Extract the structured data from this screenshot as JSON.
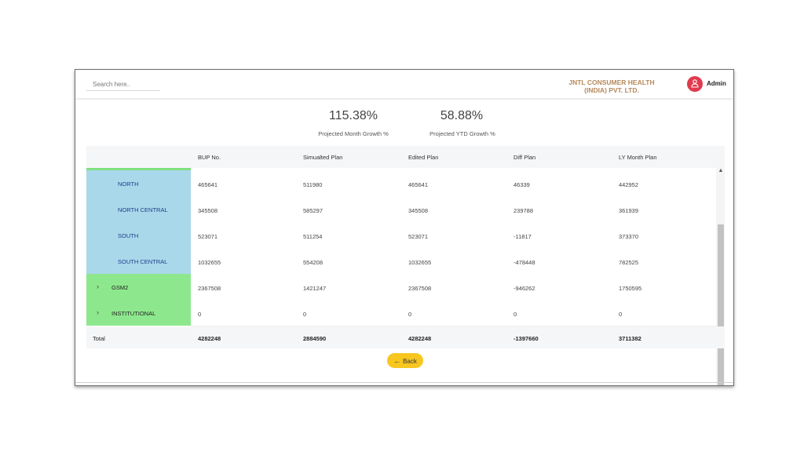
{
  "header": {
    "search_placeholder": "Search here..",
    "company_line1": "JNTL CONSUMER HEALTH",
    "company_line2": "(INDIA) PVT. LTD.",
    "user": "Admin",
    "avatar_icon": "user-icon",
    "avatar_color": "#e03a4f",
    "company_color": "#b5895a"
  },
  "kpis": [
    {
      "value": "115.38%",
      "label": "Projected Month Growth %"
    },
    {
      "value": "58.88%",
      "label": "Projected YTD Growth %"
    }
  ],
  "table": {
    "columns": [
      "",
      "BUP No.",
      "Simualted Plan",
      "Edited Plan",
      "Diff Plan",
      "LY Month Plan"
    ],
    "rows": [
      {
        "label": "NORTH",
        "type": "region",
        "values": [
          "465641",
          "511980",
          "465641",
          "46339",
          "442952"
        ]
      },
      {
        "label": "NORTH CENTRAL",
        "type": "region",
        "values": [
          "345508",
          "585297",
          "345508",
          "239788",
          "361939"
        ]
      },
      {
        "label": "SOUTH",
        "type": "region",
        "values": [
          "523071",
          "511254",
          "523071",
          "-11817",
          "373370"
        ]
      },
      {
        "label": "SOUTH CENTRAL",
        "type": "region",
        "values": [
          "1032655",
          "554208",
          "1032655",
          "-478448",
          "782525"
        ]
      },
      {
        "label": "GSM2",
        "type": "group",
        "values": [
          "2367508",
          "1421247",
          "2367508",
          "-946262",
          "1750595"
        ]
      },
      {
        "label": "INSTITUTIONAL",
        "type": "group",
        "values": [
          "0",
          "0",
          "0",
          "0",
          "0"
        ]
      }
    ],
    "total": {
      "label": "Total",
      "values": [
        "4282248",
        "2884590",
        "4282248",
        "-1397660",
        "3711382"
      ]
    },
    "region_color": "#a9d8ea",
    "group_color": "#8de88d"
  },
  "back_button": {
    "label": "Back",
    "icon": "arrow-left-icon",
    "color": "#f7c71f"
  }
}
